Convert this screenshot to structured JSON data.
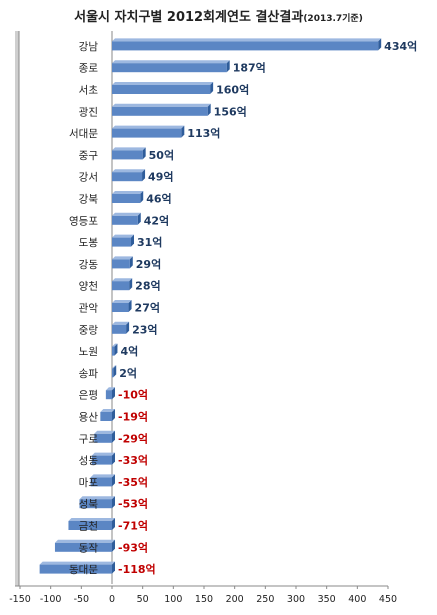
{
  "chart_data": {
    "type": "bar",
    "orientation": "horizontal",
    "title": "서울시 자치구별 2012회계연도 결산결과",
    "subtitle": "(2013.7기준)",
    "categories": [
      "강남",
      "종로",
      "서초",
      "광진",
      "서대문",
      "중구",
      "강서",
      "강북",
      "영등포",
      "도봉",
      "강동",
      "양천",
      "관악",
      "중랑",
      "노원",
      "송파",
      "은평",
      "용산",
      "구로",
      "성동",
      "마포",
      "성북",
      "금천",
      "동작",
      "동대문"
    ],
    "values": [
      434,
      187,
      160,
      156,
      113,
      50,
      49,
      46,
      42,
      31,
      29,
      28,
      27,
      23,
      4,
      2,
      -10,
      -19,
      -29,
      -33,
      -35,
      -53,
      -71,
      -93,
      -118
    ],
    "data_labels": [
      "434억",
      "187억",
      "160억",
      "156억",
      "113억",
      "50억",
      "49억",
      "46억",
      "42억",
      "31억",
      "29억",
      "28억",
      "27억",
      "23억",
      "4억",
      "2억",
      "-10억",
      "-19억",
      "-29억",
      "-33억",
      "-35억",
      "-53억",
      "-71억",
      "-93억",
      "-118억"
    ],
    "xlim": [
      -150,
      450
    ],
    "xticks": [
      "-150",
      "-100",
      "-50",
      "0",
      "50",
      "100",
      "150",
      "200",
      "250",
      "300",
      "350",
      "400",
      "450"
    ],
    "xtick_values": [
      -150,
      -100,
      -50,
      0,
      50,
      100,
      150,
      200,
      250,
      300,
      350,
      400,
      450
    ],
    "grid": false,
    "legend": "none",
    "colors": {
      "bar_front": "#5b86c4",
      "bar_top": "#9db8e0",
      "bar_side": "#2f5d9b",
      "positive_label": "#1f3a60",
      "negative_label": "#c00000",
      "axis": "#888888",
      "wall": "#cfcfcf"
    }
  }
}
